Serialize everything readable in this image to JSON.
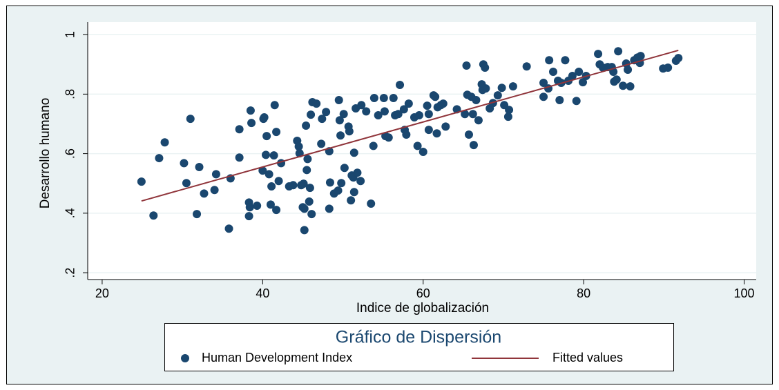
{
  "chart_data": {
    "type": "scatter",
    "x_label": "Indice de globalización",
    "y_label": "Desarrollo humano",
    "legend_title": "Gráfico de Dispersión",
    "xlim": [
      18.2,
      101.5
    ],
    "ylim": [
      0.177,
      1.042
    ],
    "xticks": [
      20,
      40,
      60,
      80,
      100
    ],
    "yticks": [
      {
        "value": 0.2,
        "label": ".2"
      },
      {
        "value": 0.4,
        "label": ".4"
      },
      {
        "value": 0.6,
        "label": ".6"
      },
      {
        "value": 0.8,
        "label": ".8"
      },
      1
    ],
    "grid": true,
    "series": [
      {
        "name": "Human Development Index",
        "type": "scatter",
        "color": "#1a476f",
        "x": [
          24.9,
          26.4,
          27.1,
          27.8,
          30.2,
          30.5,
          31.0,
          31.8,
          32.1,
          32.7,
          34.0,
          34.2,
          35.8,
          36.0,
          37.1,
          37.1,
          38.3,
          38.3,
          38.4,
          38.6,
          38.5,
          39.3,
          40.0,
          40.1,
          40.2,
          40.4,
          40.5,
          40.8,
          41.0,
          41.1,
          41.4,
          41.5,
          41.7,
          41.7,
          42.0,
          42.3,
          43.3,
          43.8,
          44.3,
          44.5,
          44.6,
          44.8,
          45.0,
          45.1,
          45.2,
          45.2,
          45.4,
          45.5,
          45.6,
          45.8,
          45.9,
          46.0,
          46.1,
          46.2,
          46.7,
          47.3,
          47.4,
          47.9,
          48.3,
          48.3,
          48.4,
          48.9,
          49.4,
          49.5,
          49.6,
          49.7,
          49.8,
          50.1,
          50.2,
          50.7,
          50.8,
          51.0,
          51.1,
          51.3,
          51.4,
          51.4,
          51.6,
          51.8,
          52.2,
          52.3,
          52.9,
          53.5,
          53.8,
          53.9,
          54.4,
          55.1,
          55.2,
          55.3,
          55.7,
          56.3,
          56.5,
          56.9,
          57.1,
          57.6,
          57.7,
          57.9,
          58.2,
          58.9,
          59.3,
          59.5,
          60.0,
          60.5,
          60.7,
          60.7,
          61.3,
          61.5,
          61.7,
          61.8,
          62.2,
          62.5,
          62.8,
          64.2,
          65.2,
          65.4,
          65.5,
          65.7,
          66.0,
          66.2,
          66.3,
          66.6,
          66.9,
          67.3,
          67.4,
          67.5,
          67.7,
          67.8,
          68.3,
          68.7,
          69.3,
          69.8,
          70.1,
          70.6,
          70.7,
          71.2,
          72.9,
          75.0,
          75.0,
          75.6,
          75.7,
          76.2,
          76.8,
          77.0,
          77.2,
          77.7,
          78.1,
          78.6,
          79.1,
          79.4,
          79.9,
          80.3,
          81.8,
          82.0,
          82.4,
          83.0,
          83.5,
          83.7,
          83.8,
          84.1,
          84.3,
          84.9,
          85.3,
          85.5,
          85.8,
          86.3,
          86.7,
          87.0,
          87.1,
          89.9,
          90.5,
          91.5,
          91.8
        ],
        "values": [
          0.506,
          0.392,
          0.585,
          0.638,
          0.568,
          0.501,
          0.717,
          0.397,
          0.555,
          0.466,
          0.478,
          0.531,
          0.348,
          0.517,
          0.682,
          0.587,
          0.436,
          0.39,
          0.42,
          0.703,
          0.745,
          0.425,
          0.543,
          0.717,
          0.722,
          0.596,
          0.659,
          0.531,
          0.429,
          0.49,
          0.594,
          0.763,
          0.673,
          0.411,
          0.508,
          0.568,
          0.49,
          0.494,
          0.643,
          0.624,
          0.601,
          0.494,
          0.42,
          0.499,
          0.415,
          0.343,
          0.694,
          0.545,
          0.582,
          0.439,
          0.485,
          0.731,
          0.397,
          0.773,
          0.768,
          0.633,
          0.717,
          0.74,
          0.608,
          0.415,
          0.503,
          0.466,
          0.476,
          0.78,
          0.712,
          0.661,
          0.501,
          0.733,
          0.552,
          0.691,
          0.675,
          0.443,
          0.527,
          0.52,
          0.603,
          0.471,
          0.752,
          0.536,
          0.508,
          0.763,
          0.742,
          0.432,
          0.626,
          0.787,
          0.729,
          0.787,
          0.742,
          0.659,
          0.654,
          0.787,
          0.729,
          0.733,
          0.831,
          0.749,
          0.68,
          0.664,
          0.768,
          0.722,
          0.626,
          0.729,
          0.606,
          0.761,
          0.733,
          0.68,
          0.796,
          0.791,
          0.668,
          0.756,
          0.763,
          0.768,
          0.691,
          0.749,
          0.733,
          0.896,
          0.798,
          0.664,
          0.791,
          0.733,
          0.629,
          0.78,
          0.712,
          0.833,
          0.814,
          0.9,
          0.889,
          0.819,
          0.752,
          0.77,
          0.796,
          0.821,
          0.763,
          0.724,
          0.747,
          0.826,
          0.893,
          0.838,
          0.791,
          0.819,
          0.914,
          0.875,
          0.845,
          0.78,
          0.838,
          0.914,
          0.845,
          0.861,
          0.777,
          0.875,
          0.84,
          0.861,
          0.935,
          0.9,
          0.889,
          0.891,
          0.891,
          0.875,
          0.842,
          0.849,
          0.944,
          0.828,
          0.903,
          0.882,
          0.826,
          0.914,
          0.923,
          0.905,
          0.928,
          0.886,
          0.889,
          0.912,
          0.921
        ]
      },
      {
        "name": "Fitted values",
        "type": "line",
        "color": "#90353b",
        "x": [
          24.9,
          91.8
        ],
        "values": [
          0.441,
          0.947
        ]
      }
    ]
  }
}
